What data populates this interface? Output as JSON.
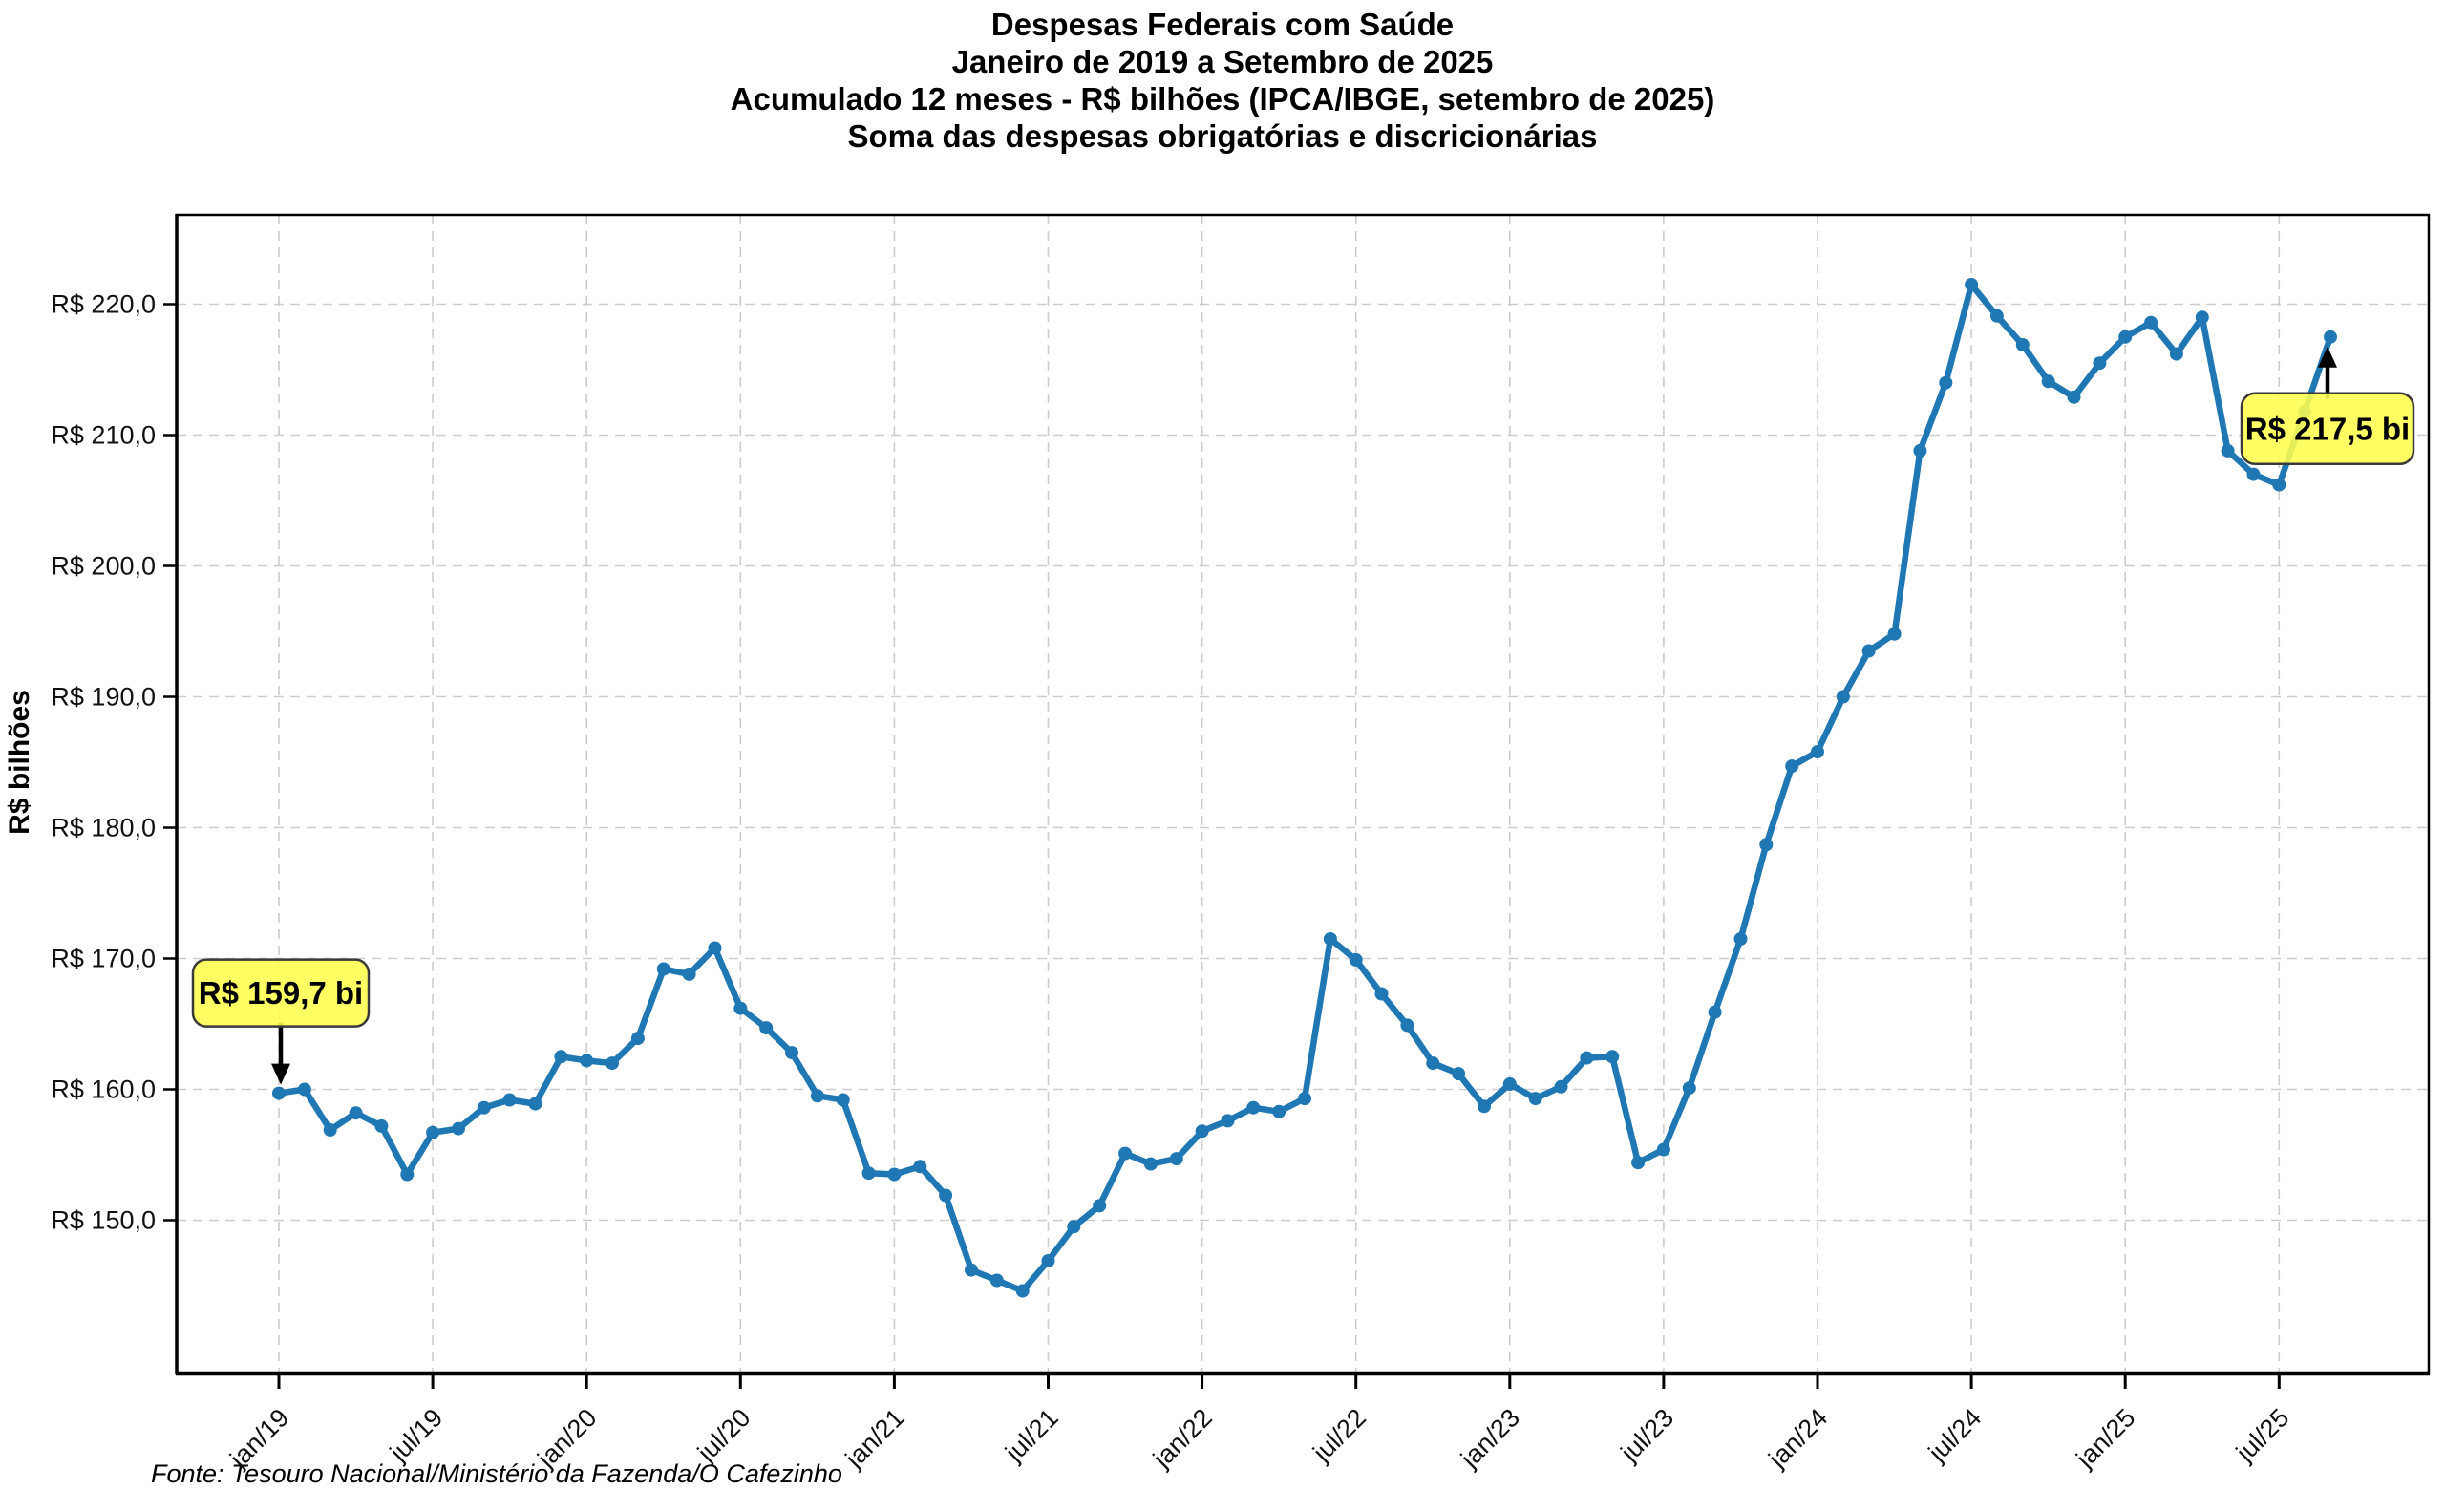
{
  "title": {
    "line1": "Despesas Federais com Saúde",
    "line2": "Janeiro de 2019 a Setembro de 2025",
    "line3": "Acumulado 12 meses - R$ bilhões (IPCA/IBGE, setembro de 2025)",
    "line4": "Soma das despesas obrigatórias e discricionárias"
  },
  "footer": "Fonte: Tesouro Nacional/Ministério da Fazenda/O Cafezinho",
  "y_axis": {
    "title": "R$ bilhões",
    "tick_values": [
      220,
      210,
      200,
      190,
      180,
      170,
      160,
      150
    ],
    "tick_labels": [
      "R$ 220,0",
      "R$ 210,0",
      "R$ 200,0",
      "R$ 190,0",
      "R$ 180,0",
      "R$ 170,0",
      "R$ 160,0",
      "R$ 150,0"
    ]
  },
  "x_axis": {
    "tick_month_indexes": [
      0,
      6,
      12,
      18,
      24,
      30,
      36,
      42,
      48,
      54,
      60,
      66,
      72,
      78
    ],
    "tick_labels": [
      "jan/19",
      "jul/19",
      "jan/20",
      "jul/20",
      "jan/21",
      "jul/21",
      "jan/22",
      "jul/22",
      "jan/23",
      "jul/23",
      "jan/24",
      "jul/24",
      "jan/25",
      "jul/25"
    ]
  },
  "annotations": [
    {
      "text": "R$ 159,7 bi",
      "month": "jan/19",
      "month_index": 0,
      "value": 159.7,
      "direction": "down"
    },
    {
      "text": "R$ 217,5 bi",
      "month": "set/25",
      "month_index": 80,
      "value": 217.5,
      "direction": "up"
    }
  ],
  "colors": {
    "line": "#1f77b4",
    "marker": "#1f77b4",
    "grid": "#cccccc",
    "annotation_fill": "#ffff4d",
    "annotation_border": "#3a3a3a",
    "axis": "#000000",
    "tick_text": "#111111"
  },
  "chart_data": {
    "type": "line",
    "title": "Despesas Federais com Saúde - Acumulado 12 meses (R$ bilhões, IPCA/IBGE set/2025)",
    "xlabel": "",
    "ylabel": "R$ bilhões",
    "ylim": [
      138,
      227
    ],
    "grid": true,
    "legend": false,
    "months": [
      "jan/19",
      "fev/19",
      "mar/19",
      "abr/19",
      "mai/19",
      "jun/19",
      "jul/19",
      "ago/19",
      "set/19",
      "out/19",
      "nov/19",
      "dez/19",
      "jan/20",
      "fev/20",
      "mar/20",
      "abr/20",
      "mai/20",
      "jun/20",
      "jul/20",
      "ago/20",
      "set/20",
      "out/20",
      "nov/20",
      "dez/20",
      "jan/21",
      "fev/21",
      "mar/21",
      "abr/21",
      "mai/21",
      "jun/21",
      "jul/21",
      "ago/21",
      "set/21",
      "out/21",
      "nov/21",
      "dez/21",
      "jan/22",
      "fev/22",
      "mar/22",
      "abr/22",
      "mai/22",
      "jun/22",
      "jul/22",
      "ago/22",
      "set/22",
      "out/22",
      "nov/22",
      "dez/22",
      "jan/23",
      "fev/23",
      "mar/23",
      "abr/23",
      "mai/23",
      "jun/23",
      "jul/23",
      "ago/23",
      "set/23",
      "out/23",
      "nov/23",
      "dez/23",
      "jan/24",
      "fev/24",
      "mar/24",
      "abr/24",
      "mai/24",
      "jun/24",
      "jul/24",
      "ago/24",
      "set/24",
      "out/24",
      "nov/24",
      "dez/24",
      "jan/25",
      "fev/25",
      "mar/25",
      "abr/25",
      "mai/25",
      "jun/25",
      "jul/25",
      "ago/25",
      "set/25"
    ],
    "values": [
      159.7,
      160.0,
      156.9,
      158.2,
      157.2,
      153.5,
      156.7,
      157.0,
      158.6,
      159.2,
      158.9,
      162.5,
      162.2,
      162.0,
      163.9,
      169.2,
      168.8,
      170.8,
      166.2,
      164.7,
      162.8,
      159.5,
      159.2,
      153.6,
      153.5,
      154.1,
      151.9,
      146.2,
      145.4,
      144.6,
      146.9,
      149.5,
      151.1,
      155.1,
      154.3,
      154.7,
      156.8,
      157.6,
      158.6,
      158.3,
      159.3,
      171.5,
      169.9,
      167.3,
      164.9,
      162.0,
      161.2,
      158.7,
      160.4,
      159.3,
      160.2,
      162.4,
      162.5,
      154.4,
      155.4,
      160.1,
      165.9,
      171.5,
      178.7,
      184.7,
      185.8,
      190.0,
      193.5,
      194.8,
      208.8,
      214.0,
      221.5,
      219.1,
      216.9,
      214.1,
      212.9,
      215.5,
      217.5,
      218.6,
      216.2,
      219.0,
      208.8,
      207.0,
      206.2,
      211.8,
      217.5
    ]
  }
}
